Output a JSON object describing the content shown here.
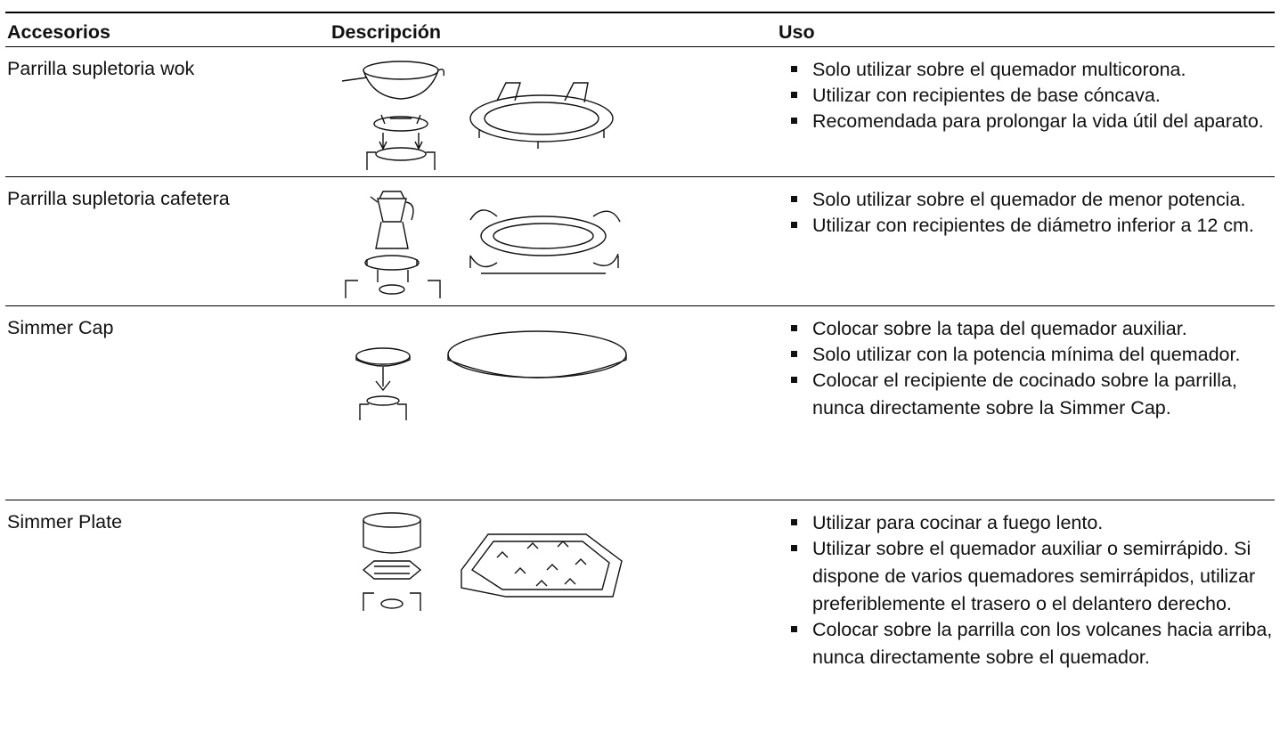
{
  "table": {
    "header": [
      "Accesorios",
      "Descripción",
      "Uso"
    ],
    "rows": [
      {
        "accessory": "Parrilla supletoria wok",
        "uso": [
          "Solo utilizar sobre el quemador multicorona.",
          "Utilizar con recipientes de base cóncava.",
          "Recomendada para prolongar la vida útil del aparato."
        ]
      },
      {
        "accessory": "Parrilla supletoria cafetera",
        "uso": [
          "Solo utilizar sobre el quemador de menor potencia.",
          "Utilizar con recipientes de diámetro inferior a 12 cm."
        ]
      },
      {
        "accessory": "Simmer Cap",
        "uso": [
          "Colocar sobre la tapa del quemador auxiliar.",
          "Solo utilizar con la potencia mínima del quemador.",
          "Colocar el recipiente de cocinado sobre la parrilla, nunca directamente sobre la Simmer Cap."
        ]
      },
      {
        "accessory": "Simmer Plate",
        "uso": [
          "Utilizar para cocinar a fuego lento.",
          "Utilizar sobre el quemador auxiliar o semirrápido. Si dispone de varios quemadores semirrápidos, utilizar preferiblemente el trasero o el delantero derecho.",
          "Colocar sobre la parrilla con los volcanes hacia arriba, nunca directamente sobre el quemador."
        ]
      }
    ]
  }
}
